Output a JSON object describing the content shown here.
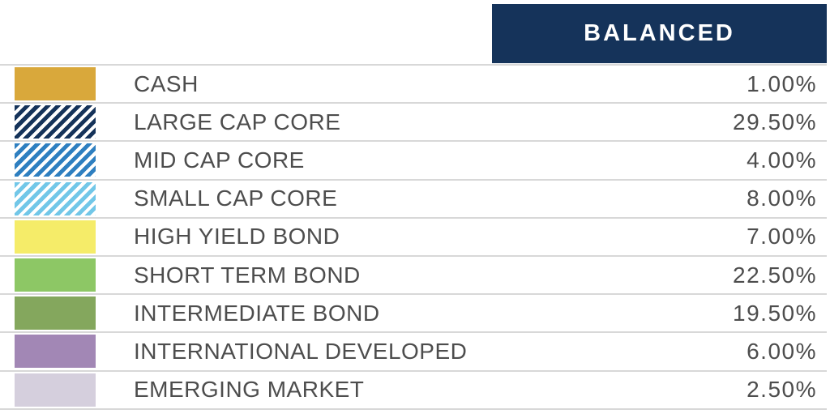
{
  "header": {
    "column_label": "BALANCED"
  },
  "allocation_table": {
    "rows": [
      {
        "label": "CASH",
        "value": "1.00%",
        "swatch_icon": "cash-swatch",
        "pattern": "solid",
        "color": "#d9a83b"
      },
      {
        "label": "LARGE CAP CORE",
        "value": "29.50%",
        "swatch_icon": "large-cap-core-swatch",
        "pattern": "stripes",
        "color": "#15335a"
      },
      {
        "label": "MID CAP CORE",
        "value": "4.00%",
        "swatch_icon": "mid-cap-core-swatch",
        "pattern": "stripes",
        "color": "#2e7fc0"
      },
      {
        "label": "SMALL CAP CORE",
        "value": "8.00%",
        "swatch_icon": "small-cap-core-swatch",
        "pattern": "stripes",
        "color": "#72c7e8"
      },
      {
        "label": "HIGH YIELD BOND",
        "value": "7.00%",
        "swatch_icon": "high-yield-bond-swatch",
        "pattern": "solid",
        "color": "#f5ec69"
      },
      {
        "label": "SHORT TERM BOND",
        "value": "22.50%",
        "swatch_icon": "short-term-bond-swatch",
        "pattern": "solid",
        "color": "#8dc765"
      },
      {
        "label": "INTERMEDIATE BOND",
        "value": "19.50%",
        "swatch_icon": "intermediate-bond-swatch",
        "pattern": "solid",
        "color": "#84a75d"
      },
      {
        "label": "INTERNATIONAL DEVELOPED",
        "value": "6.00%",
        "swatch_icon": "international-developed-swatch",
        "pattern": "solid",
        "color": "#a287b5"
      },
      {
        "label": "EMERGING MARKET",
        "value": "2.50%",
        "swatch_icon": "emerging-market-swatch",
        "pattern": "solid",
        "color": "#d5cfdd"
      }
    ]
  },
  "colors": {
    "header_bg": "#15335a",
    "header_text": "#ffffff",
    "row_text": "#4d4d4d",
    "divider": "#d8d8d8",
    "stripe_background": "#ffffff"
  },
  "chart_data": {
    "type": "table",
    "title": "BALANCED",
    "unit": "%",
    "categories": [
      "CASH",
      "LARGE CAP CORE",
      "MID CAP CORE",
      "SMALL CAP CORE",
      "HIGH YIELD BOND",
      "SHORT TERM BOND",
      "INTERMEDIATE BOND",
      "INTERNATIONAL DEVELOPED",
      "EMERGING MARKET"
    ],
    "values": [
      1.0,
      29.5,
      4.0,
      8.0,
      7.0,
      22.5,
      19.5,
      6.0,
      2.5
    ],
    "legend_colors": [
      "#d9a83b",
      "#15335a",
      "#2e7fc0",
      "#72c7e8",
      "#f5ec69",
      "#8dc765",
      "#84a75d",
      "#a287b5",
      "#d5cfdd"
    ],
    "legend_patterns": [
      "solid",
      "stripes",
      "stripes",
      "stripes",
      "solid",
      "solid",
      "solid",
      "solid",
      "solid"
    ]
  }
}
